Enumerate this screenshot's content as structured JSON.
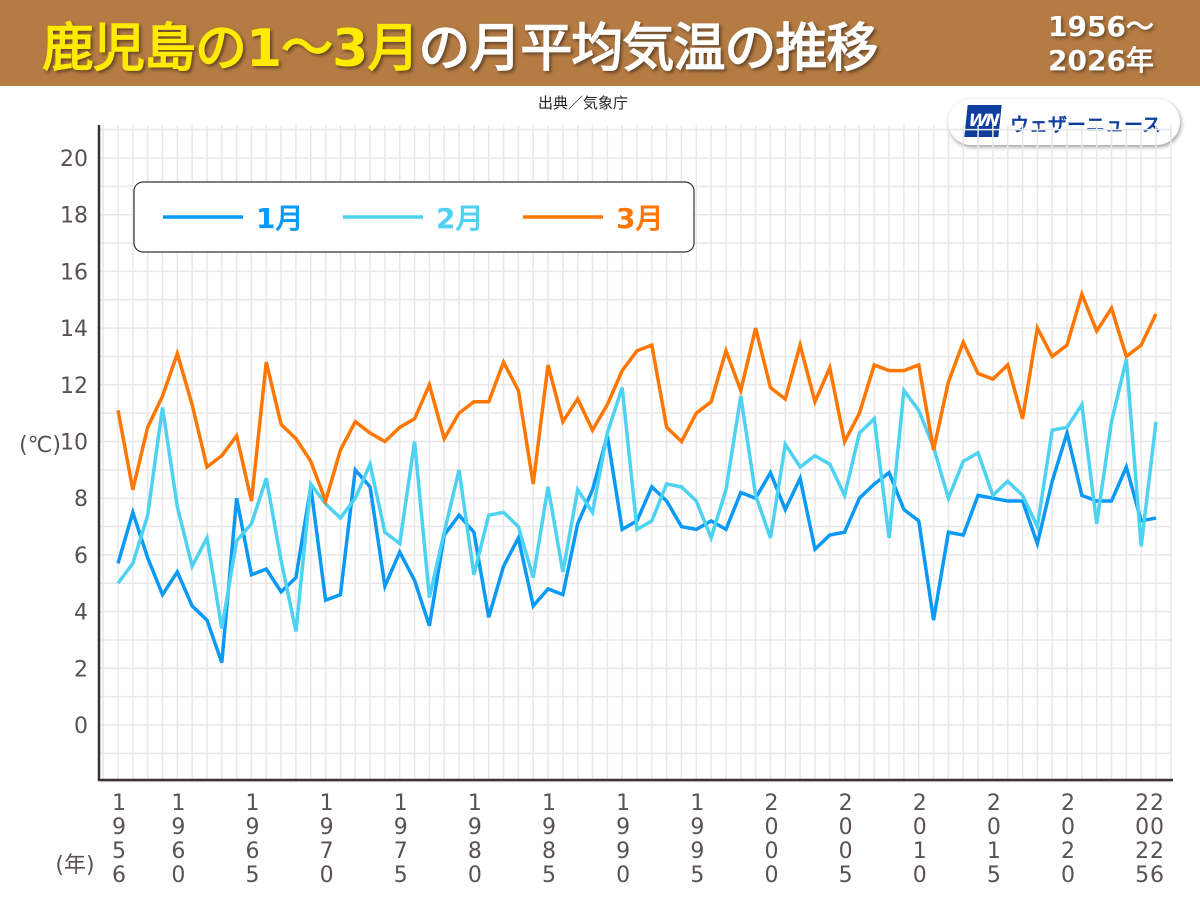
{
  "header": {
    "title_highlight": "鹿児島の1〜3月",
    "title_rest": "の月平均気温の推移",
    "period_line1": "1956〜",
    "period_line2": "2026年"
  },
  "source": "出典／気象庁",
  "logo": {
    "mark": "WN",
    "text": "ウェザーニュース"
  },
  "chart_data": {
    "type": "line",
    "ylabel": "(℃)",
    "xlabel": "(年)",
    "ylim": [
      -2,
      21
    ],
    "yticks": [
      0,
      2,
      4,
      6,
      8,
      10,
      12,
      14,
      16,
      18,
      20
    ],
    "xlim": [
      1956,
      2026
    ],
    "xticks": [
      1956,
      1960,
      1965,
      1970,
      1975,
      1980,
      1985,
      1990,
      1995,
      2000,
      2005,
      2010,
      2015,
      2020,
      2025,
      2026
    ],
    "grid": true,
    "legend_position": "top-left",
    "x_start": 1956,
    "series": [
      {
        "name": "1月",
        "color": "#0a9af5",
        "values": [
          5.7,
          7.5,
          5.9,
          4.6,
          5.4,
          4.2,
          3.7,
          2.2,
          8.0,
          5.3,
          5.5,
          4.7,
          5.2,
          8.4,
          4.4,
          4.6,
          9.0,
          8.4,
          4.9,
          6.1,
          5.1,
          3.5,
          6.7,
          7.4,
          6.8,
          3.8,
          5.6,
          6.6,
          4.2,
          4.8,
          4.6,
          7.1,
          8.3,
          10.2,
          6.9,
          7.2,
          8.4,
          7.9,
          7.0,
          6.9,
          7.2,
          6.9,
          8.2,
          8.0,
          8.9,
          7.6,
          8.7,
          6.2,
          6.7,
          6.8,
          8.0,
          8.5,
          8.9,
          7.6,
          7.2,
          3.7,
          6.8,
          6.7,
          8.1,
          8.0,
          7.9,
          7.9,
          6.4,
          8.6,
          10.3,
          8.1,
          7.9,
          7.9,
          9.1,
          7.2,
          7.3
        ]
      },
      {
        "name": "2月",
        "color": "#4dd2f2",
        "values": [
          5.0,
          5.7,
          7.4,
          11.2,
          7.7,
          5.6,
          6.6,
          3.4,
          6.5,
          7.1,
          8.7,
          5.8,
          3.3,
          8.5,
          7.8,
          7.3,
          8.0,
          9.2,
          6.8,
          6.4,
          10.0,
          4.5,
          6.8,
          9.0,
          5.3,
          7.4,
          7.5,
          7.0,
          5.2,
          8.4,
          5.4,
          8.3,
          7.5,
          10.3,
          11.9,
          6.9,
          7.2,
          8.5,
          8.4,
          7.9,
          6.6,
          8.3,
          11.6,
          8.1,
          6.6,
          9.9,
          9.1,
          9.5,
          9.2,
          8.1,
          10.3,
          10.8,
          6.6,
          11.8,
          11.1,
          9.8,
          8.0,
          9.3,
          9.6,
          8.1,
          8.6,
          8.1,
          7.0,
          10.4,
          10.5,
          11.3,
          7.1,
          10.7,
          12.9,
          6.3,
          10.7
        ]
      },
      {
        "name": "3月",
        "color": "#ff7700",
        "values": [
          11.1,
          8.3,
          10.5,
          11.6,
          13.1,
          11.3,
          9.1,
          9.5,
          10.2,
          7.9,
          12.8,
          10.6,
          10.1,
          9.3,
          7.9,
          9.7,
          10.7,
          10.3,
          10.0,
          10.5,
          10.8,
          12.0,
          10.1,
          11.0,
          11.4,
          11.4,
          12.8,
          11.8,
          8.5,
          12.7,
          10.7,
          11.5,
          10.4,
          11.3,
          12.5,
          13.2,
          13.4,
          10.5,
          10.0,
          11.0,
          11.4,
          13.2,
          11.8,
          14.0,
          11.9,
          11.5,
          13.4,
          11.4,
          12.6,
          10.0,
          11.0,
          12.7,
          12.5,
          12.5,
          12.7,
          9.7,
          12.1,
          13.5,
          12.4,
          12.2,
          12.7,
          10.8,
          14.0,
          13.0,
          13.4,
          15.2,
          13.9,
          14.7,
          13.0,
          13.4,
          14.5
        ]
      }
    ]
  }
}
